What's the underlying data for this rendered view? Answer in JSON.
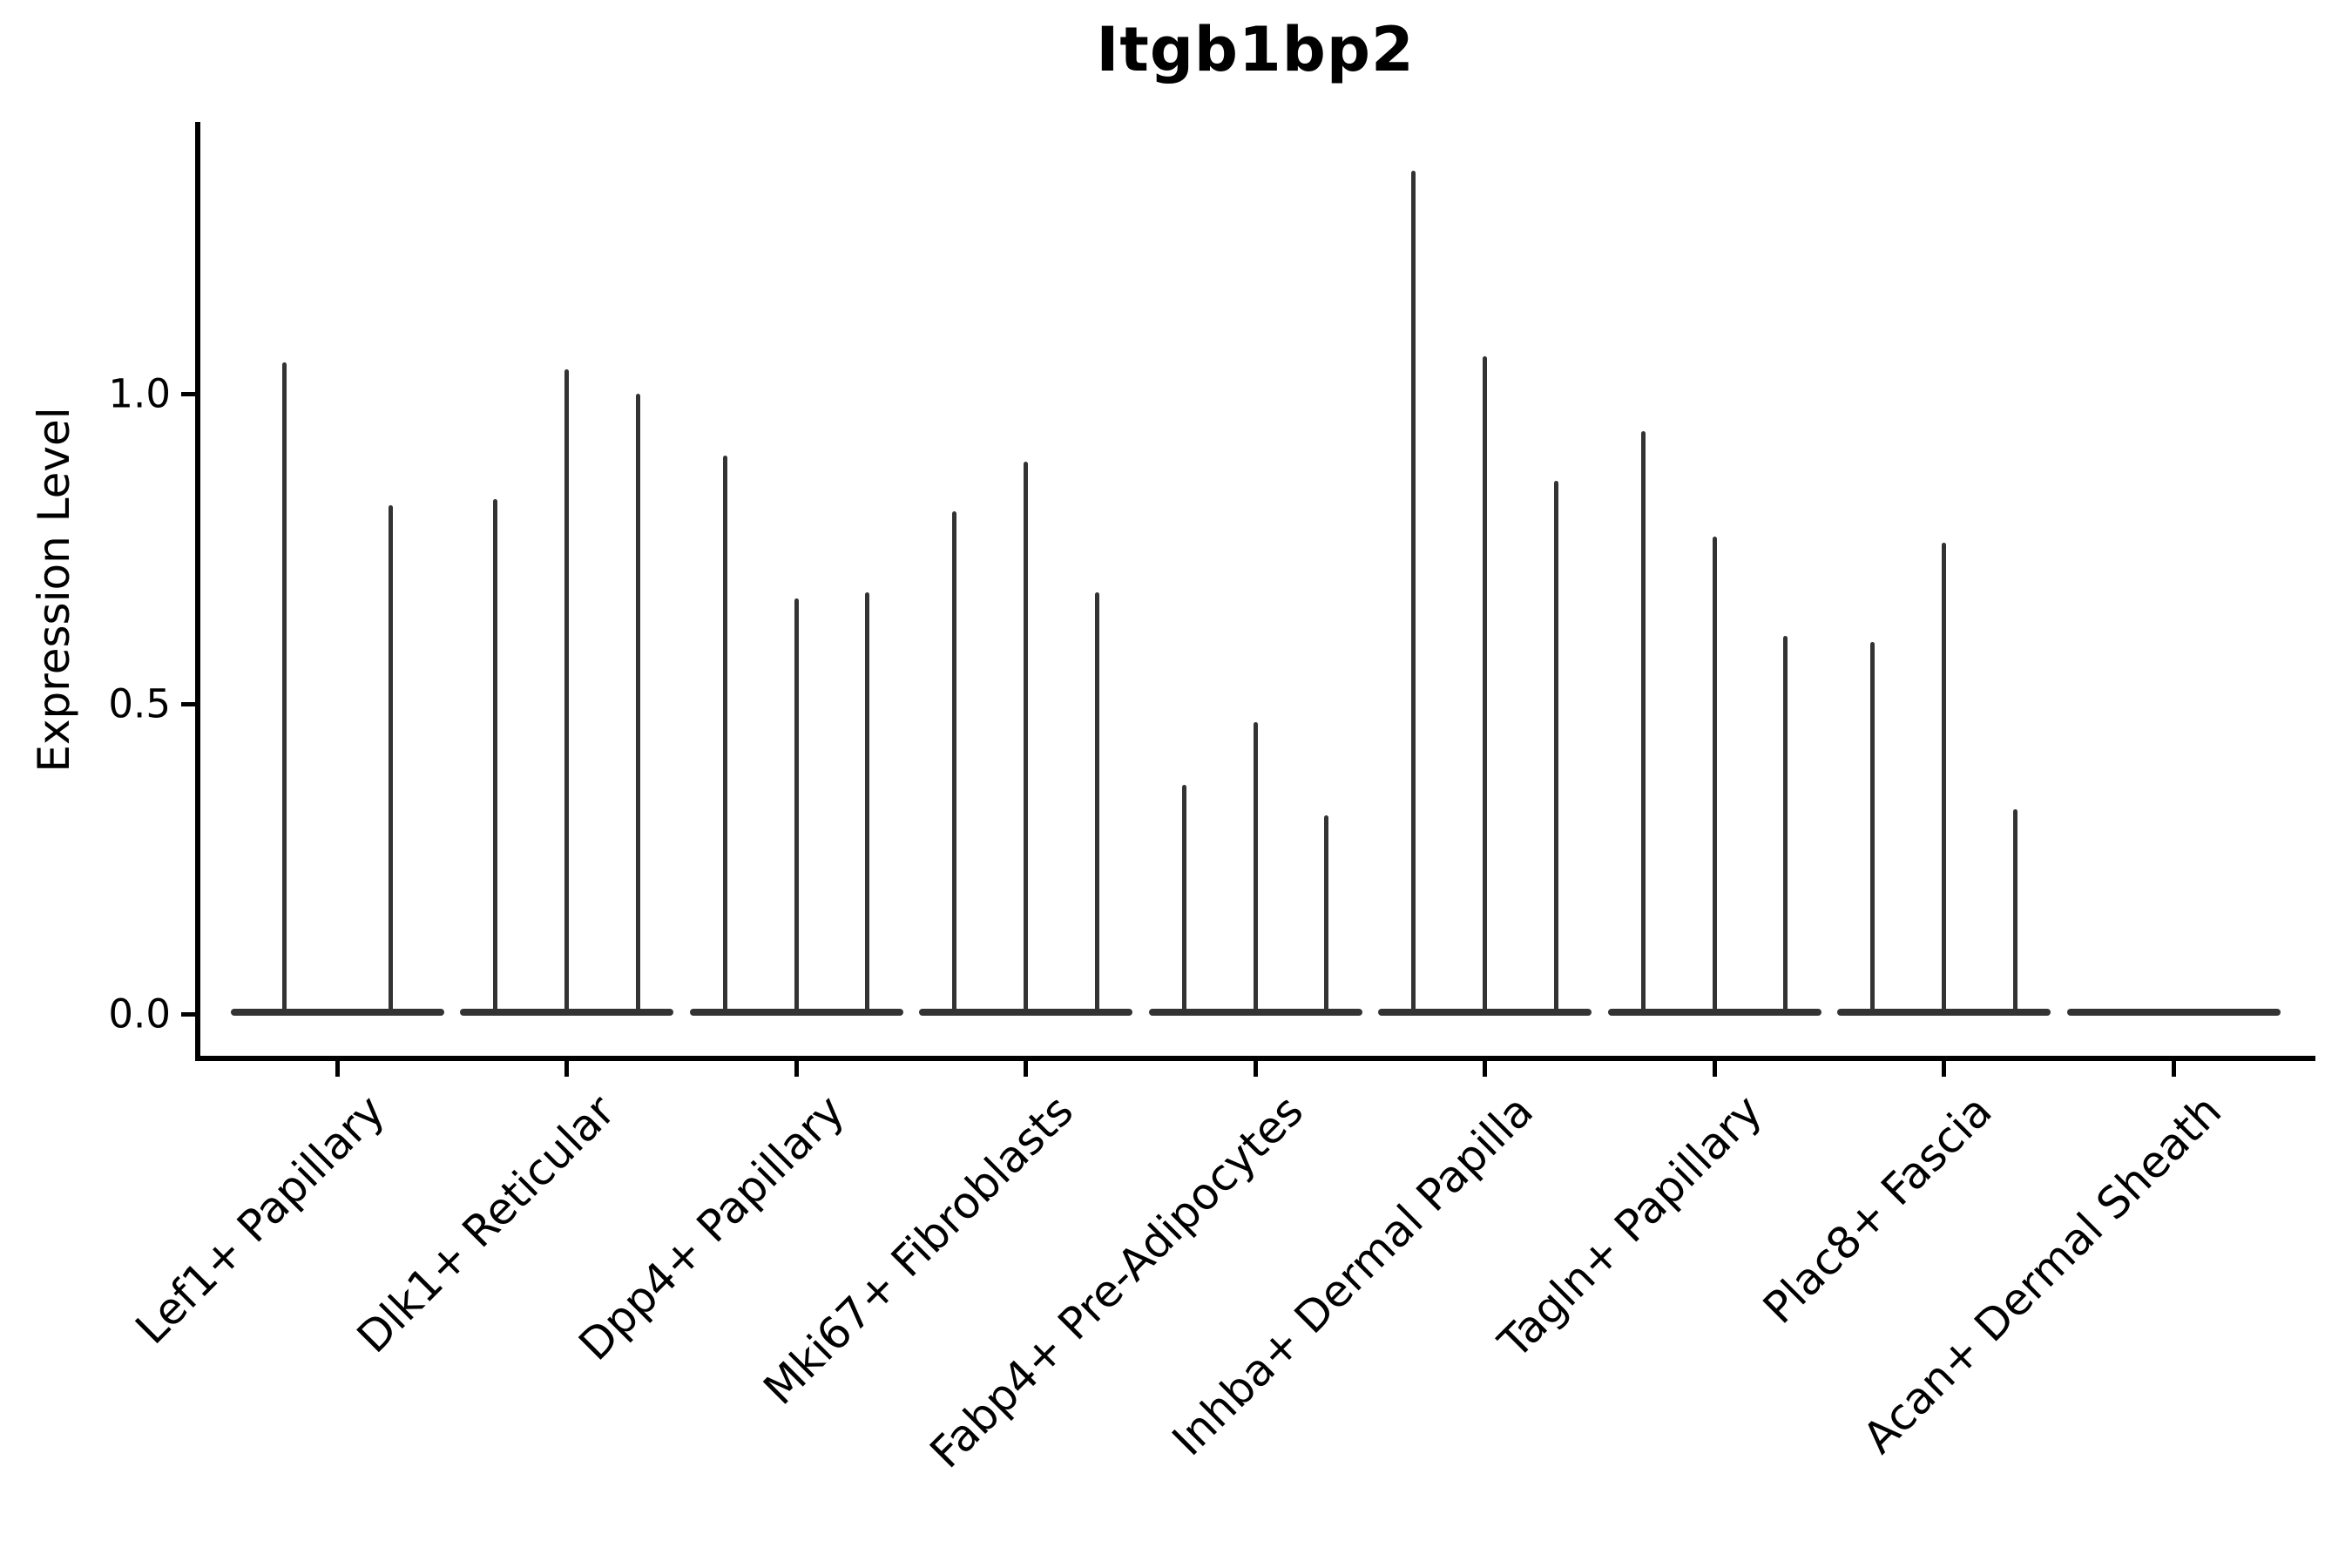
{
  "colors": {
    "violin": "#333333",
    "axis": "#000000",
    "text": "#000000",
    "background": "#ffffff"
  },
  "chart_data": {
    "type": "violin",
    "title": "Itgb1bp2",
    "xlabel": "",
    "ylabel": "Expression Level",
    "categories": [
      "Lef1+ Papillary",
      "Dlk1+ Reticular",
      "Dpp4+ Papillary",
      "Mki67+ Fibroblasts",
      "Fabp4+ Pre-Adipocytes",
      "Inhba+ Dermal Papilla",
      "Tagln+ Papillary",
      "Plac8+ Fascia",
      "Acan+ Dermal Sheath"
    ],
    "description": "Each category shows very thin violins collapsed at 0 with narrow spikes rising to the maximum expression value; Acan+ Dermal Sheath has no spikes (all values at 0).",
    "spike_maxima_per_category": [
      [
        1.05,
        0.82
      ],
      [
        0.83,
        1.04,
        1.0
      ],
      [
        0.9,
        0.67,
        0.68
      ],
      [
        0.81,
        0.89,
        0.68
      ],
      [
        0.37,
        0.47,
        0.32
      ],
      [
        1.36,
        1.06,
        0.86
      ],
      [
        0.94,
        0.77,
        0.61
      ],
      [
        0.6,
        0.76,
        0.33
      ],
      []
    ],
    "baseline_value": 0.0,
    "yticks": [
      0.0,
      0.5,
      1.0
    ],
    "ytick_labels": [
      "0.0",
      "0.5",
      "1.0"
    ],
    "ylim": [
      -0.07,
      1.44
    ],
    "grid": false,
    "legend": "none",
    "spines": [
      "left",
      "bottom"
    ],
    "xtick_label_rotation_deg": 45
  }
}
